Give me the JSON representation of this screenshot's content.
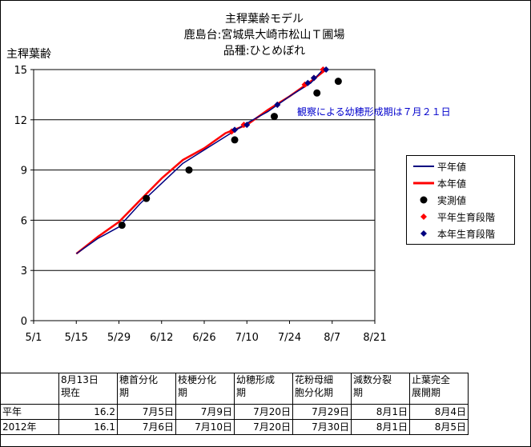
{
  "title": [
    "主稈葉齢モデル",
    "鹿島台:宮城県大崎市松山Ｔ圃場",
    "品種:ひとめぼれ"
  ],
  "annotation": "観察による幼穂形成期は７月２１日",
  "legend": [
    "平年値",
    "本年値",
    "実測値",
    "平年生育段階",
    "本年生育段階"
  ],
  "colors": {
    "normal": "#000080",
    "current": "#ff0000",
    "measured": "#000000",
    "normal_stage": "#ff0000",
    "current_stage": "#000080",
    "grid": "#000000"
  },
  "chart_data": {
    "type": "line",
    "title": "主稈葉齢モデル",
    "ylabel": "主稈葉齢",
    "xlabel": "",
    "xlim": [
      "05-01",
      "08-21"
    ],
    "ylim": [
      0,
      15
    ],
    "yticks": [
      0,
      3,
      6,
      9,
      12,
      15
    ],
    "xticks": [
      "5/1",
      "5/15",
      "5/29",
      "6/12",
      "6/26",
      "7/10",
      "7/24",
      "8/7",
      "8/21"
    ],
    "grid": "horizontal",
    "legend_position": "right",
    "series": [
      {
        "name": "平年値",
        "style": "line",
        "points": [
          [
            "05-15",
            4.0
          ],
          [
            "05-22",
            4.9
          ],
          [
            "05-29",
            5.6
          ],
          [
            "06-05",
            7.0
          ],
          [
            "06-12",
            8.2
          ],
          [
            "06-19",
            9.4
          ],
          [
            "06-26",
            10.2
          ],
          [
            "07-03",
            11.0
          ],
          [
            "07-10",
            11.8
          ],
          [
            "07-17",
            12.5
          ],
          [
            "07-24",
            13.4
          ],
          [
            "07-31",
            14.2
          ],
          [
            "08-04",
            15.0
          ]
        ]
      },
      {
        "name": "本年値",
        "style": "line",
        "points": [
          [
            "05-15",
            4.0
          ],
          [
            "05-22",
            5.0
          ],
          [
            "05-29",
            5.9
          ],
          [
            "06-05",
            7.2
          ],
          [
            "06-12",
            8.5
          ],
          [
            "06-19",
            9.6
          ],
          [
            "06-26",
            10.3
          ],
          [
            "07-03",
            11.2
          ],
          [
            "07-10",
            11.7
          ],
          [
            "07-17",
            12.6
          ],
          [
            "07-24",
            13.4
          ],
          [
            "07-31",
            14.3
          ],
          [
            "08-05",
            15.0
          ]
        ]
      },
      {
        "name": "実測値",
        "style": "marker",
        "points": [
          [
            "05-30",
            5.7
          ],
          [
            "06-07",
            7.3
          ],
          [
            "06-21",
            9.0
          ],
          [
            "07-06",
            10.8
          ],
          [
            "07-19",
            12.2
          ],
          [
            "08-02",
            13.6
          ],
          [
            "08-09",
            14.3
          ]
        ]
      },
      {
        "name": "平年生育段階",
        "style": "marker",
        "points": [
          [
            "07-05",
            11.3
          ],
          [
            "07-09",
            11.7
          ],
          [
            "07-20",
            12.9
          ],
          [
            "07-29",
            14.1
          ],
          [
            "08-01",
            14.5
          ],
          [
            "08-04",
            15.0
          ]
        ]
      },
      {
        "name": "本年生育段階",
        "style": "marker",
        "points": [
          [
            "07-06",
            11.4
          ],
          [
            "07-10",
            11.7
          ],
          [
            "07-20",
            12.9
          ],
          [
            "07-30",
            14.2
          ],
          [
            "08-01",
            14.5
          ],
          [
            "08-05",
            15.0
          ]
        ]
      }
    ]
  },
  "table": {
    "headers": [
      "8月13日\n現在",
      "穂首分化\n期",
      "枝梗分化\n期",
      "幼穂形成\n期",
      "花粉母細\n胞分化期",
      "減数分裂\n期",
      "止葉完全\n展開期"
    ],
    "rows": [
      {
        "label": "平年",
        "cells": [
          "16.2",
          "7月5日",
          "7月9日",
          "7月20日",
          "7月29日",
          "8月1日",
          "8月4日"
        ]
      },
      {
        "label": "2012年",
        "cells": [
          "16.1",
          "7月6日",
          "7月10日",
          "7月20日",
          "7月30日",
          "8月1日",
          "8月5日"
        ]
      }
    ]
  }
}
